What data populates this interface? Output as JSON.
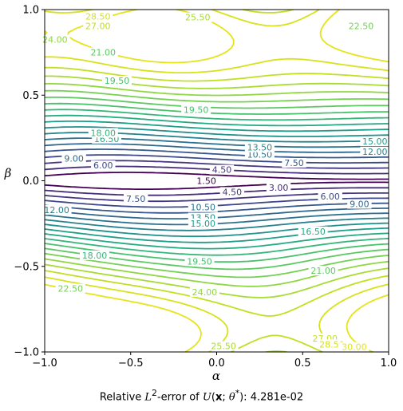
{
  "chart_data": {
    "type": "contour",
    "xlabel": "α",
    "ylabel": "β",
    "xlim": [
      -1.0,
      1.0
    ],
    "ylim": [
      -1.0,
      1.0
    ],
    "x_ticks": [
      "−1.0",
      "−0.5",
      "0.0",
      "0.5",
      "1.0"
    ],
    "y_ticks": [
      "−1.0",
      "−0.5",
      "0.0",
      "0.5",
      "1.0"
    ],
    "x_tick_values": [
      -1.0,
      -0.5,
      0.0,
      0.5,
      1.0
    ],
    "y_tick_values": [
      -1.0,
      -0.5,
      0.0,
      0.5,
      1.0
    ],
    "colormap": "viridis",
    "contour_levels": [
      1.5,
      3.0,
      4.5,
      6.0,
      7.5,
      9.0,
      10.5,
      12.0,
      13.5,
      15.0,
      16.5,
      18.0,
      19.5,
      21.0,
      22.5,
      24.0,
      25.5,
      27.0,
      28.5,
      30.0
    ],
    "contour_colors": [
      "#440154",
      "#472c7a",
      "#453781",
      "#3e4989",
      "#38598c",
      "#31688e",
      "#2c728e",
      "#26828e",
      "#21918c",
      "#1f9e89",
      "#25ab82",
      "#35b779",
      "#4ac16d",
      "#5ec962",
      "#75d054",
      "#90d743",
      "#a8db34",
      "#c2df23",
      "#d8e219",
      "#e5e419"
    ],
    "contour_labels": [
      {
        "text": "1.50",
        "x": -0.06,
        "y": 0.0
      },
      {
        "text": "3.00",
        "x": 0.36,
        "y": -0.04
      },
      {
        "text": "4.50",
        "x": 0.03,
        "y": 0.065
      },
      {
        "text": "4.50",
        "x": 0.09,
        "y": -0.065
      },
      {
        "text": "6.00",
        "x": -0.66,
        "y": 0.09
      },
      {
        "text": "6.00",
        "x": 0.66,
        "y": -0.09
      },
      {
        "text": "7.50",
        "x": -0.47,
        "y": -0.105
      },
      {
        "text": "7.50",
        "x": 0.45,
        "y": 0.105
      },
      {
        "text": "9.00",
        "x": -0.83,
        "y": 0.13
      },
      {
        "text": "9.00",
        "x": 0.83,
        "y": -0.135
      },
      {
        "text": "10.50",
        "x": 0.25,
        "y": 0.155
      },
      {
        "text": "10.50",
        "x": -0.08,
        "y": -0.155
      },
      {
        "text": "12.00",
        "x": 0.92,
        "y": 0.17
      },
      {
        "text": "12.00",
        "x": -0.93,
        "y": -0.17
      },
      {
        "text": "13.50",
        "x": 0.25,
        "y": 0.195
      },
      {
        "text": "13.50",
        "x": -0.08,
        "y": -0.215
      },
      {
        "text": "15.00",
        "x": 0.92,
        "y": 0.23
      },
      {
        "text": "15.00",
        "x": -0.08,
        "y": -0.25
      },
      {
        "text": "16.50",
        "x": -0.64,
        "y": 0.245
      },
      {
        "text": "16.50",
        "x": 0.56,
        "y": -0.295
      },
      {
        "text": "18.00",
        "x": -0.66,
        "y": 0.28
      },
      {
        "text": "18.00",
        "x": -0.71,
        "y": -0.435
      },
      {
        "text": "19.50",
        "x": -0.58,
        "y": 0.585
      },
      {
        "text": "19.50",
        "x": -0.12,
        "y": 0.415
      },
      {
        "text": "19.50",
        "x": -0.1,
        "y": -0.47
      },
      {
        "text": "21.00",
        "x": -0.66,
        "y": 0.75
      },
      {
        "text": "21.00",
        "x": 0.62,
        "y": -0.525
      },
      {
        "text": "22.50",
        "x": 0.84,
        "y": 0.905
      },
      {
        "text": "22.50",
        "x": -0.85,
        "y": -0.63
      },
      {
        "text": "24.00",
        "x": -0.94,
        "y": 0.825
      },
      {
        "text": "24.00",
        "x": -0.07,
        "y": -0.65
      },
      {
        "text": "25.50",
        "x": -0.11,
        "y": 0.955
      },
      {
        "text": "25.50",
        "x": 0.04,
        "y": -0.965
      },
      {
        "text": "27.00",
        "x": -0.69,
        "y": 0.905
      },
      {
        "text": "27.00",
        "x": 0.63,
        "y": -0.92
      },
      {
        "text": "28.50",
        "x": -0.69,
        "y": 0.96
      },
      {
        "text": "28.50",
        "x": 0.67,
        "y": -0.955
      },
      {
        "text": "30.00",
        "x": 0.8,
        "y": -0.97
      }
    ]
  },
  "caption": {
    "prefix": "Relative ",
    "L": "L",
    "sup": "2",
    "middle": "-error of ",
    "U": "U",
    "open": "(",
    "x": "x",
    "semi": "; ",
    "theta": "θ",
    "star": "*",
    "close": "): ",
    "value": "4.281e-02"
  }
}
